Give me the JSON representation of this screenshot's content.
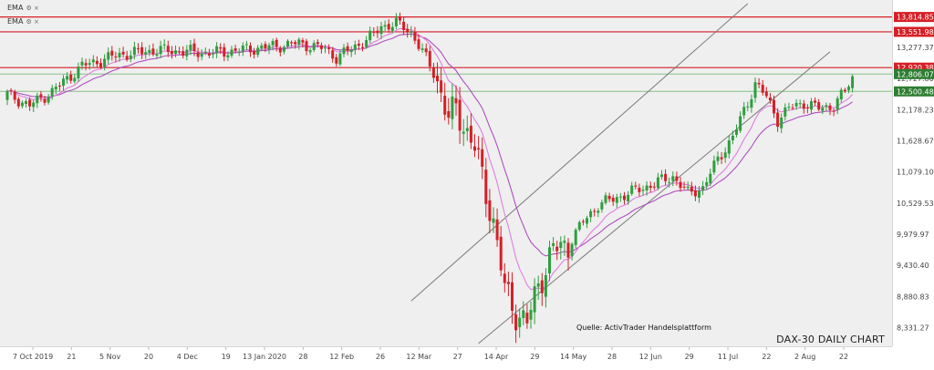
{
  "legend": [
    {
      "label": "EMA",
      "icons": "⚙ ×"
    },
    {
      "label": "EMA",
      "icons": "⚙ ×"
    }
  ],
  "title": "DAX-30 DAILY CHART",
  "source": "Quelle: ActivTrader Handelsplattform",
  "colors": {
    "up": "#2e9e3e",
    "down": "#d51f27",
    "ema_fast": "#e07ee0",
    "ema_slow": "#b04fc0",
    "resistance": "#d51f27",
    "support": "#86c286",
    "channel": "#7a7a7a",
    "price_tag_red": "#d51f27",
    "price_tag_green": "#2e7d32"
  },
  "chart_data": {
    "type": "candlestick",
    "title": "DAX-30 DAILY CHART",
    "x_ticks": [
      "7 Oct 2019",
      "21",
      "5 Nov",
      "20",
      "4 Dec",
      "19",
      "13 Jan 2020",
      "28",
      "12 Feb",
      "26",
      "12 Mar",
      "27",
      "14 Apr",
      "29",
      "14 May",
      "28",
      "12 Jun",
      "29",
      "11 Jul",
      "22",
      "2 Aug",
      "22"
    ],
    "y_ticks": [
      8331.27,
      8880.83,
      9430.4,
      9979.97,
      10529.53,
      11079.1,
      11628.67,
      12178.23,
      12727.8,
      13277.37
    ],
    "ylim": [
      8000,
      14050
    ],
    "horizontal_levels": [
      {
        "label": "13,814.85",
        "value": 13814.85,
        "role": "resistance"
      },
      {
        "label": "13,551.98",
        "value": 13551.98,
        "role": "resistance"
      },
      {
        "label": "12,920.38",
        "value": 12920.38,
        "role": "resistance"
      },
      {
        "label": "12,806.07",
        "value": 12806.07,
        "role": "support"
      },
      {
        "label": "12,500.48",
        "value": 12500.48,
        "role": "support"
      }
    ],
    "trend_channel": [
      {
        "from": [
          108,
          8800
        ],
        "to": [
          198,
          14050
        ]
      },
      {
        "from": [
          126,
          8050
        ],
        "to": [
          220,
          13200
        ]
      }
    ],
    "ohlc": [],
    "ema_fast": [],
    "ema_slow": []
  }
}
